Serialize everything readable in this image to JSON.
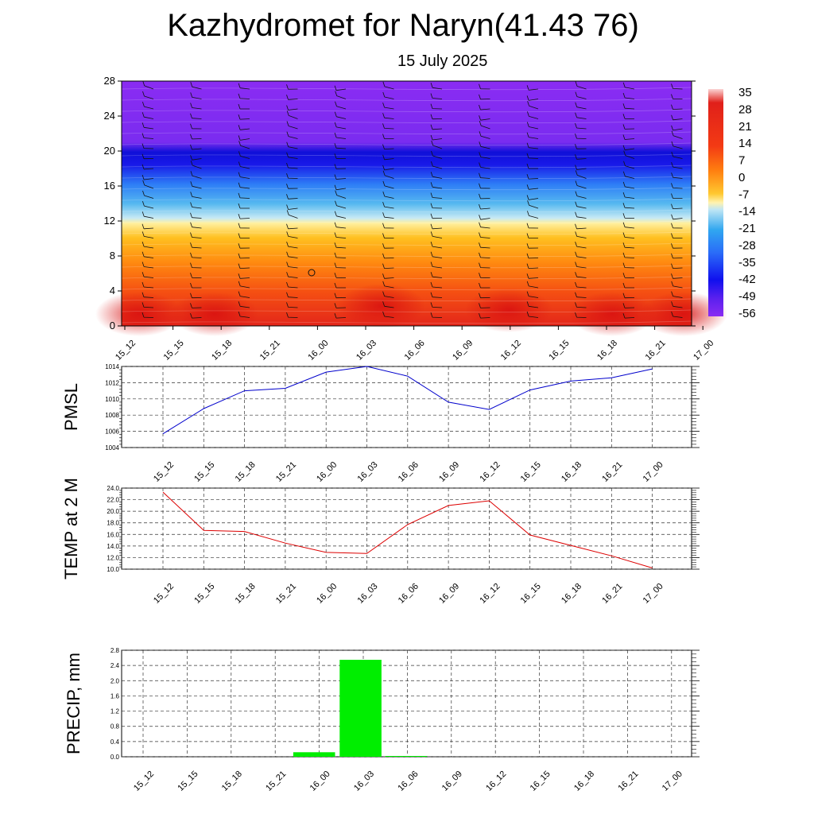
{
  "title": "Kazhydromet for Naryn(41.43 76)",
  "subtitle": "15 July 2025",
  "time_labels": [
    "15_12",
    "15_15",
    "15_18",
    "15_21",
    "16_00",
    "16_03",
    "16_06",
    "16_09",
    "16_12",
    "16_15",
    "16_18",
    "16_21",
    "17_00"
  ],
  "chart_data": [
    {
      "type": "heatmap",
      "description_axis": "height (km) vs time",
      "x": [
        "15_12",
        "15_15",
        "15_18",
        "15_21",
        "16_00",
        "16_03",
        "16_06",
        "16_09",
        "16_12",
        "16_15",
        "16_18",
        "16_21",
        "17_00"
      ],
      "ylim": [
        0,
        28
      ],
      "yticks": [
        0,
        4,
        8,
        12,
        16,
        20,
        24,
        28
      ],
      "colorbar_labels": [
        "35",
        "28",
        "21",
        "14",
        "7",
        "0",
        "-7",
        "-14",
        "-21",
        "-28",
        "-35",
        "-42",
        "-49",
        "-56"
      ],
      "color_stops": [
        "#fbd0d0",
        "#e0201a",
        "#f33a14",
        "#ff7a10",
        "#ffb01a",
        "#ffe066",
        "#fff7b0",
        "#a9e0f0",
        "#2aa0f0",
        "#2060ff",
        "#1010f0",
        "#7a28f0"
      ],
      "grid": false
    },
    {
      "type": "line",
      "ylabel": "PMSL",
      "x": [
        "15_12",
        "15_15",
        "15_18",
        "15_21",
        "16_00",
        "16_03",
        "16_06",
        "16_09",
        "16_12",
        "16_15",
        "16_18",
        "16_21",
        "17_00"
      ],
      "series": [
        {
          "values": [
            1005.7,
            1008.8,
            1011.0,
            1011.3,
            1013.3,
            1014.0,
            1012.8,
            1009.6,
            1008.7,
            1011.1,
            1012.2,
            1012.6,
            1013.7
          ],
          "color": "#0000cc"
        }
      ],
      "ylim": [
        1004,
        1014
      ],
      "yticks": [
        "1004",
        "1006",
        "1008",
        "1010",
        "1012",
        "1014"
      ],
      "grid": true
    },
    {
      "type": "line",
      "ylabel": "TEMP at 2 M",
      "x": [
        "15_12",
        "15_15",
        "15_18",
        "15_21",
        "16_00",
        "16_03",
        "16_06",
        "16_09",
        "16_12",
        "16_15",
        "16_18",
        "16_21",
        "17_00"
      ],
      "series": [
        {
          "values": [
            23.3,
            16.7,
            16.5,
            14.5,
            12.9,
            12.7,
            17.7,
            21.0,
            21.8,
            15.9,
            14.1,
            12.3,
            10.2
          ],
          "color": "#dd0000"
        }
      ],
      "ylim": [
        10,
        24
      ],
      "yticks": [
        "10.0",
        "12.0",
        "14.0",
        "16.0",
        "18.0",
        "20.0",
        "22.0",
        "24.0"
      ],
      "grid": true
    },
    {
      "type": "bar",
      "ylabel": "PRECIP, mm",
      "categories": [
        "15_12",
        "15_15",
        "15_18",
        "15_21",
        "16_00",
        "16_03",
        "16_06",
        "16_09",
        "16_12",
        "16_15",
        "16_18",
        "16_21",
        "17_00"
      ],
      "values": [
        0,
        0,
        0,
        0,
        0.12,
        2.55,
        0.02,
        0,
        0,
        0,
        0,
        0,
        0
      ],
      "color": "#00ee00",
      "ylim": [
        0,
        2.8
      ],
      "yticks": [
        "0.0",
        "0.4",
        "0.8",
        "1.2",
        "1.6",
        "2.0",
        "2.4",
        "2.8"
      ],
      "grid": true
    }
  ]
}
